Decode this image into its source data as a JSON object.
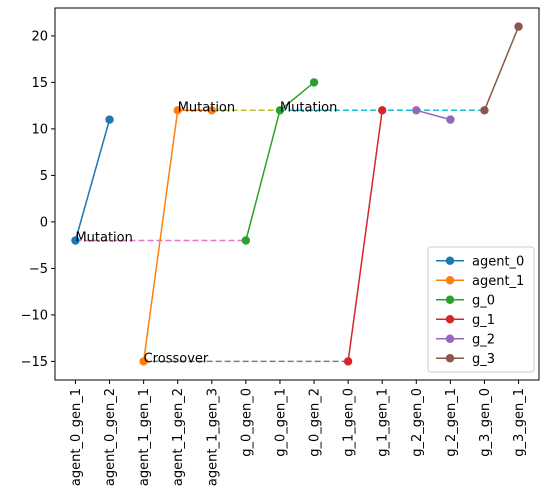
{
  "chart_data": {
    "type": "line",
    "title": "",
    "xlabel": "",
    "ylabel": "",
    "categories": [
      "agent_0_gen_1",
      "agent_0_gen_2",
      "agent_1_gen_1",
      "agent_1_gen_2",
      "agent_1_gen_3",
      "g_0_gen_0",
      "g_0_gen_1",
      "g_0_gen_2",
      "g_1_gen_0",
      "g_1_gen_1",
      "g_2_gen_0",
      "g_2_gen_1",
      "g_3_gen_0",
      "g_3_gen_1"
    ],
    "ylim": [
      -17,
      23
    ],
    "yticks": [
      -15,
      -10,
      -5,
      0,
      5,
      10,
      15,
      20
    ],
    "ytick_labels": [
      "−15",
      "−10",
      "−5",
      "0",
      "5",
      "10",
      "15",
      "20"
    ],
    "grid": false,
    "legend_position": "lower right",
    "series": [
      {
        "name": "agent_0",
        "color": "#1f77b4",
        "points": [
          [
            "agent_0_gen_1",
            -2
          ],
          [
            "agent_0_gen_2",
            11
          ]
        ]
      },
      {
        "name": "agent_1",
        "color": "#ff7f0e",
        "points": [
          [
            "agent_1_gen_1",
            -15
          ],
          [
            "agent_1_gen_2",
            12
          ],
          [
            "agent_1_gen_3",
            12
          ]
        ]
      },
      {
        "name": "g_0",
        "color": "#2ca02c",
        "points": [
          [
            "g_0_gen_0",
            -2
          ],
          [
            "g_0_gen_1",
            12
          ],
          [
            "g_0_gen_2",
            15
          ]
        ]
      },
      {
        "name": "g_1",
        "color": "#d62728",
        "points": [
          [
            "g_1_gen_0",
            -15
          ],
          [
            "g_1_gen_1",
            12
          ]
        ]
      },
      {
        "name": "g_2",
        "color": "#9467bd",
        "points": [
          [
            "g_2_gen_0",
            12
          ],
          [
            "g_2_gen_1",
            11
          ]
        ]
      },
      {
        "name": "g_3",
        "color": "#8c564b",
        "points": [
          [
            "g_3_gen_0",
            12
          ],
          [
            "g_3_gen_1",
            21
          ]
        ]
      }
    ],
    "connections": [
      {
        "from": [
          "agent_0_gen_1",
          -2
        ],
        "to": [
          "g_0_gen_0",
          -2
        ],
        "color": "#e377c2"
      },
      {
        "from": [
          "agent_1_gen_1",
          -15
        ],
        "to": [
          "g_1_gen_0",
          -15
        ],
        "color": "#7f7f7f"
      },
      {
        "from": [
          "agent_1_gen_2",
          12
        ],
        "to": [
          "g_0_gen_1",
          12
        ],
        "color": "#bcbd22"
      },
      {
        "from": [
          "g_0_gen_1",
          12
        ],
        "to": [
          "g_3_gen_0",
          12
        ],
        "color": "#17becf"
      }
    ],
    "annotations": [
      {
        "text": "Mutation",
        "at": [
          "agent_0_gen_1",
          -2
        ]
      },
      {
        "text": "Crossover",
        "at": [
          "agent_1_gen_1",
          -15
        ]
      },
      {
        "text": "Mutation",
        "at": [
          "agent_1_gen_2",
          12
        ]
      },
      {
        "text": "Mutation",
        "at": [
          "g_0_gen_1",
          12
        ]
      }
    ]
  }
}
